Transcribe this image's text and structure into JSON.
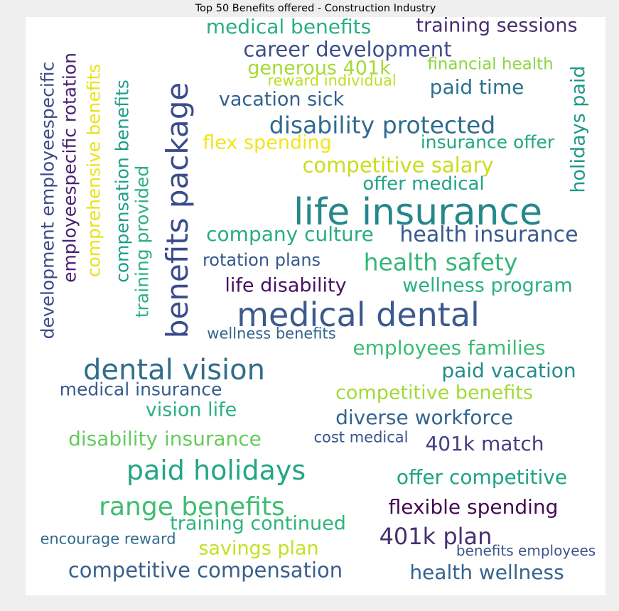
{
  "title": "Top 50 Benefits offered - Construction Industry",
  "words": [
    {
      "text": "life insurance",
      "color": "#25878a"
    },
    {
      "text": "medical dental",
      "color": "#3a5a8c"
    },
    {
      "text": "benefits package",
      "color": "#3b4c8c"
    },
    {
      "text": "dental vision",
      "color": "#316d8d"
    },
    {
      "text": "paid holidays",
      "color": "#24a683"
    },
    {
      "text": "range benefits",
      "color": "#3ebd71"
    },
    {
      "text": "disability protected",
      "color": "#2d6c8e"
    },
    {
      "text": "health safety",
      "color": "#34b679"
    },
    {
      "text": "401k plan",
      "color": "#46306f"
    },
    {
      "text": "health insurance",
      "color": "#38598c"
    },
    {
      "text": "competitive compensation",
      "color": "#3a5f8d"
    },
    {
      "text": "career development",
      "color": "#3d4f8a"
    },
    {
      "text": "medical benefits",
      "color": "#29af7f"
    },
    {
      "text": "training sessions",
      "color": "#482e6f"
    },
    {
      "text": "competitive salary",
      "color": "#c8de1d"
    },
    {
      "text": "flexible spending",
      "color": "#440a52"
    },
    {
      "text": "offer competitive",
      "color": "#1fa385"
    },
    {
      "text": "diverse workforce",
      "color": "#32658e"
    },
    {
      "text": "disability insurance",
      "color": "#64cb5d"
    },
    {
      "text": "401k match",
      "color": "#433e85"
    },
    {
      "text": "health wellness",
      "color": "#35648e"
    },
    {
      "text": "paid vacation",
      "color": "#228c8d"
    },
    {
      "text": "employees families",
      "color": "#3cbb75"
    },
    {
      "text": "competitive benefits",
      "color": "#a2da37"
    },
    {
      "text": "wellness program",
      "color": "#2ab17f"
    },
    {
      "text": "company culture",
      "color": "#27ad81"
    },
    {
      "text": "life disability",
      "color": "#471063"
    },
    {
      "text": "holidays paid",
      "color": "#21988b"
    },
    {
      "text": "paid time",
      "color": "#2c718e"
    },
    {
      "text": "generous 401k",
      "color": "#a5db36"
    },
    {
      "text": "vacation sick",
      "color": "#34608d"
    },
    {
      "text": "flex spending",
      "color": "#f1e51d"
    },
    {
      "text": "insurance offer",
      "color": "#22a884"
    },
    {
      "text": "offer medical",
      "color": "#20a386"
    },
    {
      "text": "savings plan",
      "color": "#c5e021"
    },
    {
      "text": "training continued",
      "color": "#2fb47c"
    },
    {
      "text": "vision life",
      "color": "#2ab07f"
    },
    {
      "text": "medical insurance",
      "color": "#365c8d"
    },
    {
      "text": "compensation benefits",
      "color": "#1f9e89"
    },
    {
      "text": "comprehensive benefits",
      "color": "#e7e419"
    },
    {
      "text": "training provided",
      "color": "#2db27d"
    },
    {
      "text": "employeespecific rotation",
      "color": "#482173"
    },
    {
      "text": "development employeespecific",
      "color": "#3e4989"
    },
    {
      "text": "rotation plans",
      "color": "#38588c"
    },
    {
      "text": "financial health",
      "color": "#8ed645"
    },
    {
      "text": "reward individual",
      "color": "#bddf26"
    },
    {
      "text": "wellness benefits",
      "color": "#33638d"
    },
    {
      "text": "cost medical",
      "color": "#3a548c"
    },
    {
      "text": "encourage reward",
      "color": "#2f6b8e"
    },
    {
      "text": "benefits employees",
      "color": "#39568c"
    }
  ]
}
